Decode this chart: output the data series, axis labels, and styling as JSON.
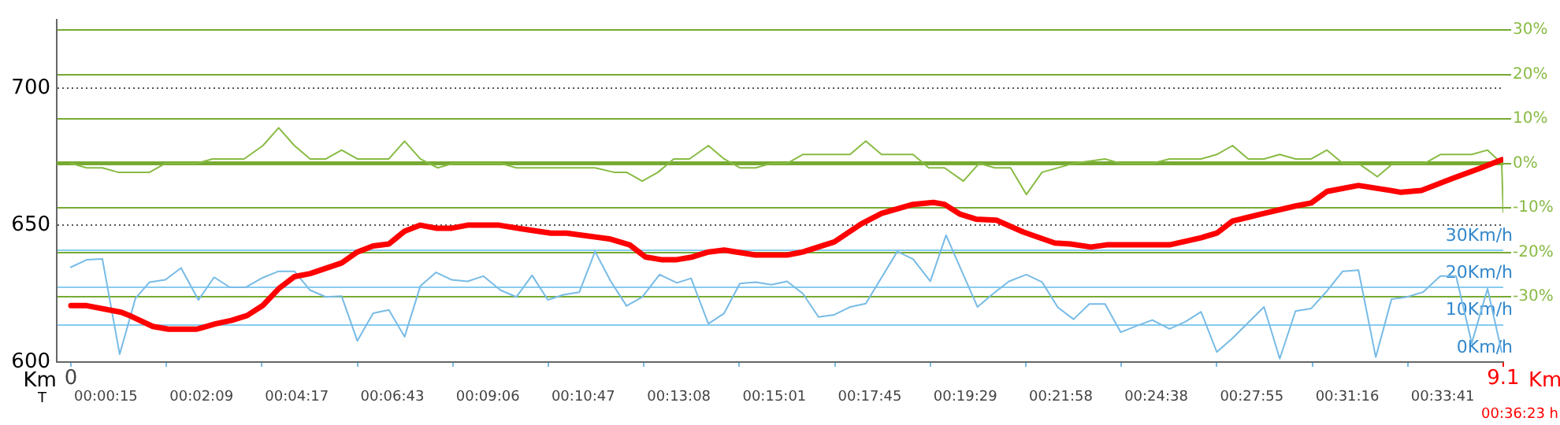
{
  "chart_data": {
    "type": "line",
    "annotations": [
      "Km",
      "Km",
      "T",
      "00:36:23 h",
      "00:00:15",
      "00:02:09",
      "00:04:17",
      "00:06:43",
      "00:09:06",
      "00:10:47",
      "00:13:08",
      "00:15:01",
      "00:17:45",
      "00:19:29",
      "00:21:58",
      "00:24:38",
      "00:27:55",
      "00:31:16",
      "00:33:41"
    ],
    "xlim": [
      -0.09,
      9.1
    ],
    "xticks": [
      {
        "value": 0,
        "label": "0"
      },
      {
        "value": 0.607,
        "label": null
      },
      {
        "value": 1.213,
        "label": null
      },
      {
        "value": 1.82,
        "label": null
      },
      {
        "value": 2.427,
        "label": null
      },
      {
        "value": 3.033,
        "label": null
      },
      {
        "value": 3.64,
        "label": null
      },
      {
        "value": 4.247,
        "label": null
      },
      {
        "value": 4.853,
        "label": null
      },
      {
        "value": 5.46,
        "label": null
      },
      {
        "value": 6.067,
        "label": null
      },
      {
        "value": 6.673,
        "label": null
      },
      {
        "value": 7.28,
        "label": null
      },
      {
        "value": 7.887,
        "label": null
      },
      {
        "value": 8.493,
        "label": null
      },
      {
        "value": 9.1,
        "label": "9.1"
      }
    ],
    "ylim": [
      600,
      725
    ],
    "yticks": [
      600,
      650,
      700
    ],
    "y2lim": [
      -44.7,
      32.3
    ],
    "y2ticks": [
      {
        "value": -30,
        "label": "-30%"
      },
      {
        "value": -20,
        "label": "-20%"
      },
      {
        "value": -10,
        "label": "-10%"
      },
      {
        "value": 0,
        "label": "0%"
      },
      {
        "value": 10,
        "label": "10%"
      },
      {
        "value": 20,
        "label": "20%"
      },
      {
        "value": 30,
        "label": "30%"
      }
    ],
    "y3lim": [
      0,
      92
    ],
    "y3ticks": [
      {
        "value": 0,
        "label": "0Km/h"
      },
      {
        "value": 10,
        "label": "10Km/h"
      },
      {
        "value": 20,
        "label": "20Km/h"
      },
      {
        "value": 30,
        "label": "30Km/h"
      }
    ],
    "grid": true,
    "ref_lines": [
      {
        "axis": "y2",
        "value": 0,
        "color": "#77aa33"
      }
    ],
    "legend": false,
    "marker": "none",
    "line_style": "solid",
    "series": [
      {
        "color": "#ff0000",
        "x": [
          0,
          0.1,
          0.32,
          0.38,
          0.52,
          0.62,
          0.8,
          0.92,
          1.02,
          1.12,
          1.22,
          1.32,
          1.42,
          1.52,
          1.72,
          1.82,
          1.92,
          2.02,
          2.12,
          2.22,
          2.32,
          2.42,
          2.52,
          2.72,
          2.88,
          3.05,
          3.15,
          3.42,
          3.55,
          3.65,
          3.75,
          3.85,
          3.95,
          4.05,
          4.15,
          4.35,
          4.55,
          4.65,
          4.85,
          5.02,
          5.15,
          5.35,
          5.48,
          5.55,
          5.65,
          5.75,
          5.88,
          6.05,
          6.25,
          6.35,
          6.48,
          6.58,
          6.98,
          7.18,
          7.28,
          7.38,
          7.48,
          7.58,
          7.78,
          7.88,
          7.98,
          8.18,
          8.38,
          8.45,
          8.58,
          8.78,
          8.95,
          9.09
        ],
        "values": [
          620.6,
          620.6,
          618.2,
          616.8,
          613,
          612,
          612,
          614,
          615.2,
          617,
          620.7,
          626.8,
          631.2,
          632.3,
          636.2,
          640.2,
          642.4,
          643.1,
          647.8,
          650,
          648.9,
          648.9,
          650,
          650,
          648.5,
          647.1,
          647.1,
          645,
          642.8,
          638.4,
          637.4,
          637.4,
          638.4,
          640.2,
          640.9,
          639.1,
          639.1,
          640.2,
          643.9,
          650.4,
          654.3,
          657.6,
          658.3,
          657.6,
          654,
          652.2,
          651.8,
          647.5,
          643.5,
          643.1,
          642,
          642.8,
          642.8,
          645.4,
          647.1,
          651.5,
          652.9,
          654.3,
          657,
          658.1,
          662.3,
          664.5,
          662.7,
          662,
          662.7,
          667.1,
          670.7,
          673.9
        ]
      },
      {
        "color": "#88bb44",
        "axis": "y2",
        "x": [
          0,
          0.1,
          0.2,
          0.3,
          0.5,
          0.6,
          0.8,
          0.9,
          1.1,
          1.22,
          1.32,
          1.42,
          1.52,
          1.62,
          1.72,
          1.82,
          2.02,
          2.12,
          2.22,
          2.33,
          2.43,
          2.73,
          2.83,
          3.33,
          3.45,
          3.53,
          3.63,
          3.73,
          3.83,
          3.93,
          4.05,
          4.15,
          4.25,
          4.35,
          4.45,
          4.55,
          4.65,
          4.95,
          5.05,
          5.15,
          5.35,
          5.45,
          5.55,
          5.67,
          5.77,
          5.87,
          5.97,
          6.07,
          6.17,
          6.37,
          6.57,
          6.67,
          6.87,
          6.98,
          7.18,
          7.28,
          7.38,
          7.48,
          7.58,
          7.68,
          7.78,
          7.88,
          7.98,
          8.08,
          8.18,
          8.3,
          8.4,
          8.6,
          8.7,
          8.9,
          9.0,
          9.09,
          9.1
        ],
        "values": [
          0,
          -1,
          -1,
          -2,
          -2,
          0,
          0,
          1,
          1,
          4,
          8,
          4,
          1,
          1,
          3,
          1,
          1,
          5,
          1,
          -1,
          0,
          0,
          -1,
          -1,
          -2,
          -2,
          -4,
          -2,
          1,
          1,
          4,
          1,
          -1,
          -1,
          0,
          0,
          2,
          2,
          5,
          2,
          2,
          -1,
          -1,
          -4,
          0,
          -1,
          -1,
          -7,
          -2,
          0,
          1,
          0,
          0,
          1,
          1,
          2,
          4,
          1,
          1,
          2,
          1,
          1,
          3,
          0,
          0,
          -3,
          0,
          0,
          2,
          2,
          3,
          0,
          -11
        ]
      },
      {
        "color": "#77bbe6",
        "axis": "y3",
        "x": [
          0,
          0.1,
          0.2,
          0.31,
          0.41,
          0.5,
          0.6,
          0.7,
          0.81,
          0.91,
          1.01,
          1.11,
          1.22,
          1.32,
          1.42,
          1.52,
          1.62,
          1.72,
          1.82,
          1.92,
          2.02,
          2.12,
          2.22,
          2.32,
          2.42,
          2.52,
          2.62,
          2.73,
          2.83,
          2.93,
          3.03,
          3.13,
          3.23,
          3.33,
          3.43,
          3.53,
          3.63,
          3.74,
          3.85,
          3.94,
          4.05,
          4.15,
          4.25,
          4.35,
          4.45,
          4.55,
          4.65,
          4.75,
          4.85,
          4.95,
          5.05,
          5.25,
          5.35,
          5.46,
          5.56,
          5.66,
          5.76,
          5.86,
          5.96,
          6.07,
          6.17,
          6.27,
          6.37,
          6.47,
          6.57,
          6.67,
          6.77,
          6.87,
          6.98,
          7.08,
          7.18,
          7.28,
          7.38,
          7.58,
          7.68,
          7.78,
          7.88,
          7.98,
          8.08,
          8.18,
          8.29,
          8.39,
          8.49,
          8.59,
          8.7,
          8.8,
          8.9,
          9.0,
          9.09
        ],
        "values": [
          25.5,
          27.5,
          27.7,
          2.1,
          17.1,
          21.5,
          22.1,
          25.3,
          16.7,
          22.8,
          20.1,
          20.1,
          22.7,
          24.4,
          24.4,
          19.3,
          17.5,
          17.7,
          5.7,
          13.1,
          14,
          6.8,
          20.4,
          24.1,
          22.1,
          21.7,
          23.1,
          19.3,
          17.5,
          23.3,
          16.7,
          18.1,
          18.8,
          29.7,
          21.7,
          15.1,
          17.5,
          23.5,
          21.3,
          22.5,
          10.3,
          13.1,
          21.1,
          21.5,
          20.8,
          21.7,
          18.4,
          12.1,
          12.7,
          14.8,
          15.7,
          29.7,
          27.7,
          21.7,
          34.1,
          24.4,
          14.8,
          18.4,
          21.7,
          23.5,
          21.5,
          14.7,
          11.5,
          15.6,
          15.6,
          8,
          9.7,
          11.3,
          8.9,
          10.8,
          13.5,
          2.7,
          6.4,
          14.8,
          0.9,
          13.7,
          14.4,
          19.1,
          24.4,
          24.7,
          1.3,
          16.9,
          17.5,
          18.8,
          23.1,
          23.1,
          5.1,
          19.7,
          2.7
        ]
      }
    ]
  }
}
